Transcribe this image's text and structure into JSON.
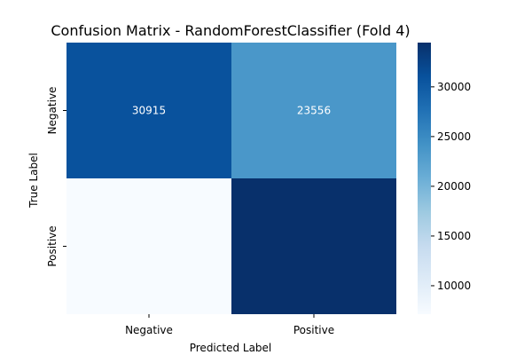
{
  "chart_data": {
    "type": "heatmap",
    "title": "Confusion Matrix - RandomForestClassifier (Fold 4)",
    "xlabel": "Predicted Label",
    "ylabel": "True Label",
    "x_categories": [
      "Negative",
      "Positive"
    ],
    "y_categories": [
      "Negative",
      "Positive"
    ],
    "values": [
      [
        30915,
        23556
      ],
      [
        7140,
        34450
      ]
    ],
    "cell_labels": [
      [
        "30915",
        "23556"
      ],
      [
        "",
        ""
      ]
    ],
    "colormap": "Blues",
    "colorbar": {
      "vmin": 7140,
      "vmax": 34450,
      "ticks": [
        10000,
        15000,
        20000,
        25000,
        30000
      ],
      "tick_labels": [
        "10000",
        "15000",
        "20000",
        "25000",
        "30000"
      ]
    },
    "grid": false
  }
}
